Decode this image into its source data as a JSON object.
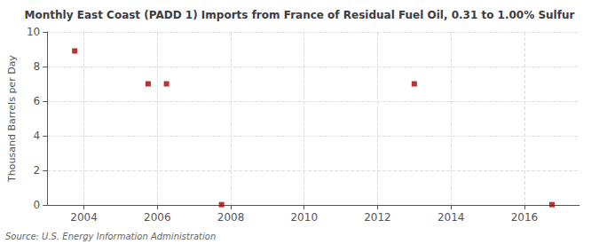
{
  "chart_data": {
    "type": "scatter",
    "title": "Monthly East Coast (PADD 1) Imports from France of Residual Fuel Oil, 0.31 to 1.00% Sulfur",
    "ylabel": "Thousand Barrels per Day",
    "annotation": "Source: U.S. Energy Information Administration",
    "x": [
      2003.75,
      2005.75,
      2006.25,
      2007.75,
      2013.0,
      2016.75
    ],
    "values": [
      8.9,
      7.0,
      7.0,
      0.02,
      7.0,
      0.02
    ],
    "color": "#aa0000",
    "marker": "square",
    "xlim": [
      2003.0,
      2017.5
    ],
    "ylim": [
      0,
      10
    ],
    "xticks": [
      2004,
      2006,
      2008,
      2010,
      2012,
      2014,
      2016
    ],
    "yticks": [
      0,
      2,
      4,
      6,
      8,
      10
    ],
    "grid": true
  }
}
